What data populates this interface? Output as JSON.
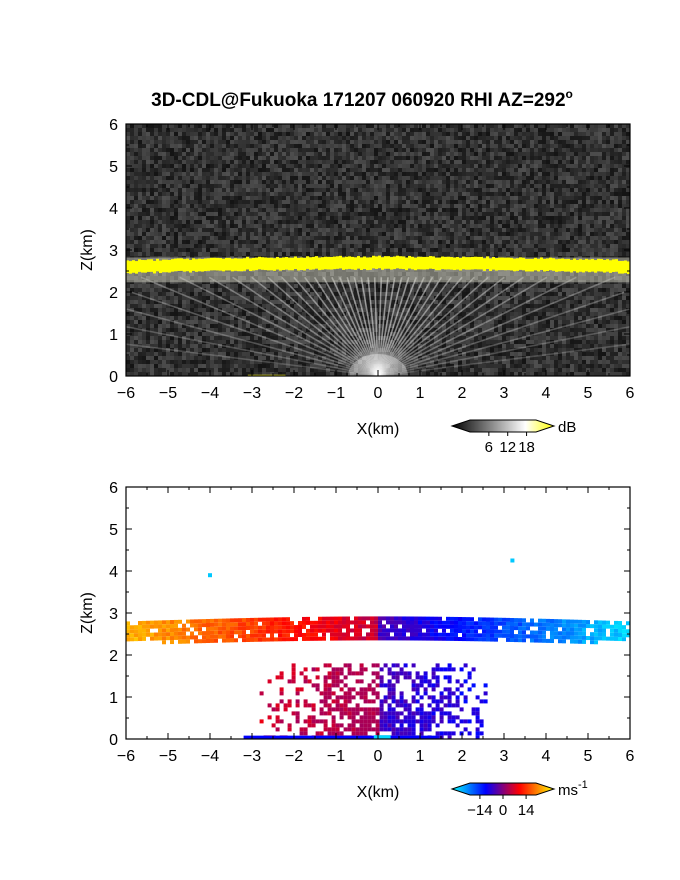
{
  "title": "3D-CDL@Fukuoka 171207 060920 RHI AZ=292",
  "title_degree": "o",
  "chart_data": [
    {
      "type": "heatmap",
      "name": "reflectivity",
      "xlabel": "X(km)",
      "ylabel": "Z(km)",
      "xlim": [
        -6,
        6
      ],
      "ylim": [
        0,
        6
      ],
      "xticks": [
        -6,
        -5,
        -4,
        -3,
        -2,
        -1,
        0,
        1,
        2,
        3,
        4,
        5,
        6
      ],
      "yticks": [
        0,
        1,
        2,
        3,
        4,
        5,
        6
      ],
      "colorbar": {
        "unit": "dB",
        "ticks": [
          6,
          12,
          18
        ],
        "range": [
          0,
          21
        ],
        "colors": [
          "#000000",
          "#ffffff",
          "#ffff00"
        ]
      },
      "layer": {
        "x_range": [
          -6,
          6
        ],
        "z_bottom_km": 2.35,
        "z_top_km": 2.75,
        "value_db": 20
      },
      "background_noise_db": 3
    },
    {
      "type": "heatmap",
      "name": "doppler-velocity",
      "xlabel": "X(km)",
      "ylabel": "Z(km)",
      "xlim": [
        -6,
        6
      ],
      "ylim": [
        0,
        6
      ],
      "xticks": [
        -6,
        -5,
        -4,
        -3,
        -2,
        -1,
        0,
        1,
        2,
        3,
        4,
        5,
        6
      ],
      "yticks": [
        0,
        1,
        2,
        3,
        4,
        5,
        6
      ],
      "colorbar": {
        "unit": "ms",
        "unit_exponent": "-1",
        "ticks": [
          -14,
          0,
          14
        ],
        "range": [
          -20,
          20
        ],
        "colors": [
          "#00ffff",
          "#0000ff",
          "#ff0000",
          "#ffff00"
        ]
      },
      "layer": {
        "x_range": [
          -6,
          6
        ],
        "z_bottom_km": 2.35,
        "z_top_km": 2.8,
        "velocity_left_ms": 16,
        "velocity_right_ms": -18
      },
      "isolated_points": [
        {
          "x": -4.0,
          "z": 3.9
        },
        {
          "x": 3.2,
          "z": 4.25
        }
      ]
    }
  ]
}
